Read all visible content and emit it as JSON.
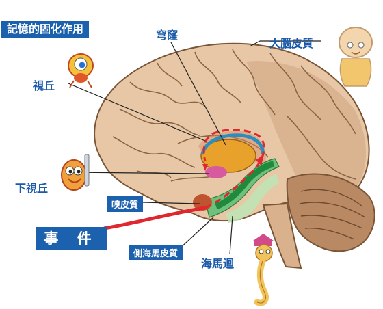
{
  "title": "記憶的固化作用",
  "labels": {
    "fornix": "穹窿",
    "cerebral_cortex": "大腦皮質",
    "thalamus": "視丘",
    "hypothalamus": "下視丘",
    "olfactory_cortex": "嗅皮質",
    "event": "事 件",
    "parahippocampal": "側海馬皮質",
    "hippocampus": "海馬迴"
  },
  "colors": {
    "label_blue": "#1a5aa8",
    "box_blue": "#1c61ad",
    "signal_red": "#e0262f",
    "hippocampus_green": "#2f9a43",
    "thalamus_orange": "#e8a12a"
  },
  "icons": [
    "thalamus-character-icon",
    "hypothalamus-character-icon",
    "cortex-character-icon",
    "seahorse-character-icon"
  ]
}
